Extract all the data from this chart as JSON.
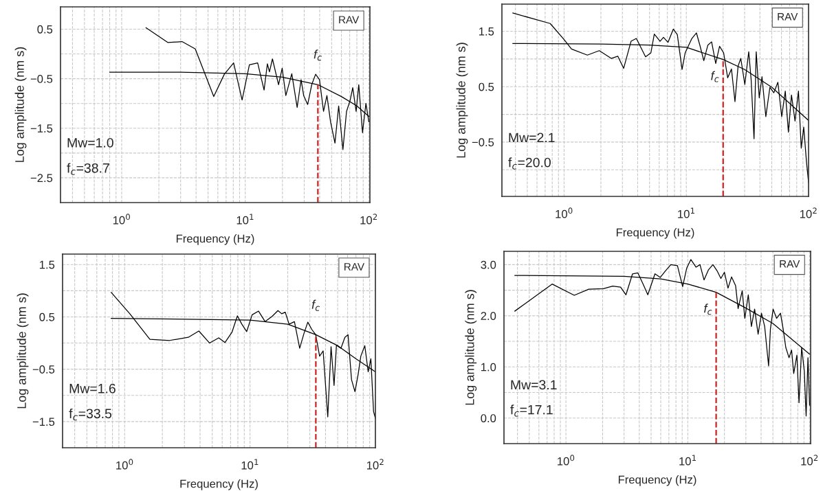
{
  "chart_data": [
    {
      "type": "line",
      "xlabel": "Frequency (Hz)",
      "ylabel": "Log amplitude (nm s)",
      "log": "x",
      "grid": true,
      "xlim": [
        0.32,
        102
      ],
      "xticks": [
        {
          "value": 1,
          "label": "10$^{0}$"
        },
        {
          "value": 10,
          "label": "10$^{1}$"
        },
        {
          "value": 100,
          "label": "10$^{2}$"
        }
      ],
      "ylim": [
        -3.0,
        0.95
      ],
      "yticks": [
        {
          "value": 0.5,
          "label": "0.5"
        },
        {
          "value": 0,
          "label": null
        },
        {
          "value": -0.5,
          "label": "−0.5"
        },
        {
          "value": -1,
          "label": null
        },
        {
          "value": -1.5,
          "label": "−1.5"
        },
        {
          "value": -2,
          "label": null
        },
        {
          "value": -2.5,
          "label": "−2.5"
        }
      ],
      "series": [
        {
          "color": "#000000",
          "x": [
            1.57,
            2.37,
            3.08,
            3.94,
            5.56,
            6.77,
            8.05,
            9.43,
            10.8,
            12.6,
            14.2,
            15.1,
            15.7,
            16.6,
            18.6,
            19.9,
            21.3,
            23.8,
            26.3,
            28.3,
            29.7,
            32.0,
            34.5,
            37.1,
            39.9,
            43.0,
            45.8,
            49.0,
            53.2,
            57.0,
            61.7,
            66.0,
            70.5,
            74.1,
            78.9,
            82.9,
            88.9,
            94.7,
            100
          ],
          "values": [
            0.53,
            0.23,
            0.25,
            0.1,
            -0.86,
            -0.41,
            -0.18,
            -0.93,
            -0.22,
            -0.18,
            -0.73,
            -0.2,
            -0.36,
            -0.1,
            -0.62,
            -0.29,
            -0.84,
            -0.4,
            -1.08,
            -0.52,
            -0.84,
            -1.02,
            -0.62,
            -0.41,
            -0.52,
            -1.16,
            -0.84,
            -1.37,
            -1.8,
            -1.05,
            -1.93,
            -1.16,
            -0.94,
            -0.68,
            -1.16,
            -0.62,
            -1.59,
            -1.0,
            -1.37
          ]
        },
        {
          "color": "#000000",
          "x": [
            0.8,
            3,
            10,
            20,
            38.7,
            60,
            80,
            100
          ],
          "values": [
            -0.37,
            -0.37,
            -0.4,
            -0.47,
            -0.62,
            -0.86,
            -1.05,
            -1.26
          ]
        }
      ],
      "ref_lines": [
        {
          "axis": "x",
          "value": 38.7,
          "label": "f$_{c}$",
          "color": "#cc2222",
          "line_style": "dashed"
        }
      ],
      "annotations": [
        "RAV",
        "Mw=1.0",
        "f$_{c}$=38.7"
      ]
    },
    {
      "type": "line",
      "xlabel": "Frequency (Hz)",
      "ylabel": "Log amplitude (nm s)",
      "log": "x",
      "grid": true,
      "xlim": [
        0.31,
        100
      ],
      "xticks": [
        {
          "value": 1,
          "label": "10$^{0}$"
        },
        {
          "value": 10,
          "label": "10$^{1}$"
        },
        {
          "value": 100,
          "label": "10$^{2}$"
        }
      ],
      "ylim": [
        -1.48,
        1.99
      ],
      "yticks": [
        {
          "value": 1.5,
          "label": "1.5"
        },
        {
          "value": 1.0,
          "label": null
        },
        {
          "value": 0.5,
          "label": "0.5"
        },
        {
          "value": 0,
          "label": null
        },
        {
          "value": -0.5,
          "label": "−0.5"
        },
        {
          "value": -1,
          "label": null
        }
      ],
      "series": [
        {
          "color": "#000000",
          "x": [
            0.38,
            0.77,
            1.0,
            1.15,
            1.55,
            1.94,
            2.43,
            2.75,
            3.07,
            3.53,
            3.9,
            4.64,
            5.13,
            5.47,
            6.1,
            6.5,
            7.08,
            7.83,
            8.44,
            9.23,
            9.78,
            11.1,
            12.1,
            12.9,
            13.9,
            15.0,
            16.1,
            17.4,
            18.7,
            20.2,
            21.8,
            23.4,
            25.0,
            26.5,
            27.9,
            30.1,
            32.4,
            33.9,
            35.8,
            37.3,
            39.5,
            41.6,
            44.7,
            48.3,
            52.0,
            56.1,
            60.3,
            64.5,
            68.4,
            72.5,
            77.5,
            82.7,
            87.1,
            91.3,
            96.1,
            100
          ],
          "values": [
            1.83,
            1.64,
            1.35,
            1.18,
            1.07,
            1.15,
            1.01,
            1.05,
            0.83,
            1.32,
            1.37,
            1.04,
            1.11,
            1.45,
            1.32,
            1.39,
            1.3,
            1.54,
            1.44,
            0.81,
            1.11,
            1.37,
            1.47,
            1.25,
            0.97,
            1.25,
            1.31,
            0.92,
            1.23,
            1.11,
            0.66,
            0.82,
            0.23,
            0.87,
            1.01,
            0.54,
            1.13,
            0.63,
            -0.44,
            1.13,
            0.3,
            0.68,
            -0.04,
            0.49,
            0.39,
            0.58,
            -0.04,
            0.42,
            -0.32,
            0.35,
            -0.12,
            0.42,
            -0.61,
            -0.23,
            -0.85,
            -1.23
          ]
        },
        {
          "color": "#000000",
          "x": [
            0.38,
            2,
            5,
            10,
            20,
            30,
            50,
            70,
            100
          ],
          "values": [
            1.28,
            1.27,
            1.25,
            1.21,
            0.99,
            0.81,
            0.49,
            0.2,
            -0.11
          ]
        }
      ],
      "ref_lines": [
        {
          "axis": "x",
          "value": 20.0,
          "label": "f$_{c}$",
          "color": "#cc2222",
          "line_style": "dashed"
        }
      ],
      "annotations": [
        "RAV",
        "Mw=2.1",
        "f$_{c}$=20.0"
      ]
    },
    {
      "type": "line",
      "xlabel": "Frequency (Hz)",
      "ylabel": "Log amplitude (nm s)",
      "log": "x",
      "grid": true,
      "xlim": [
        0.32,
        100
      ],
      "xticks": [
        {
          "value": 1,
          "label": "10$^{0}$"
        },
        {
          "value": 10,
          "label": "10$^{1}$"
        },
        {
          "value": 100,
          "label": "10$^{2}$"
        }
      ],
      "ylim": [
        -2.0,
        1.7
      ],
      "yticks": [
        {
          "value": 1.5,
          "label": "1.5"
        },
        {
          "value": 1.0,
          "label": null
        },
        {
          "value": 0.5,
          "label": "0.5"
        },
        {
          "value": 0,
          "label": null
        },
        {
          "value": -0.5,
          "label": "−0.5"
        },
        {
          "value": -1,
          "label": null
        },
        {
          "value": -1.5,
          "label": "−1.5"
        }
      ],
      "series": [
        {
          "color": "#000000",
          "x": [
            0.78,
            1.1,
            1.59,
            2.29,
            3.22,
            3.91,
            4.76,
            5.63,
            6.31,
            7.19,
            7.93,
            8.61,
            9.41,
            10.4,
            11.7,
            13.2,
            15.0,
            16.7,
            17.9,
            19.1,
            20.5,
            22.6,
            24.9,
            26.9,
            28.9,
            31.1,
            33.4,
            35.9,
            38.3,
            41.7,
            44.3,
            46.8,
            48.9,
            53.1,
            57.1,
            60.5,
            64.5,
            68.7,
            72.8,
            76.5,
            82.3,
            87.6,
            92.0,
            96.7,
            100
          ],
          "values": [
            0.97,
            0.56,
            0.07,
            0.05,
            0.11,
            0.23,
            0.0,
            0.1,
            0.01,
            0.21,
            0.52,
            0.36,
            0.22,
            0.54,
            0.61,
            0.41,
            0.51,
            0.62,
            0.56,
            0.59,
            0.36,
            0.41,
            -0.1,
            0.18,
            0.4,
            0.26,
            0.16,
            -0.25,
            -0.15,
            -1.41,
            -0.07,
            -0.81,
            -0.04,
            -0.1,
            0.11,
            0.16,
            -0.7,
            -0.93,
            -0.6,
            -0.25,
            -0.05,
            -0.55,
            -0.3,
            -1.31,
            -1.44
          ]
        },
        {
          "color": "#000000",
          "x": [
            0.78,
            5,
            10,
            20,
            33.5,
            50,
            70,
            100
          ],
          "values": [
            0.47,
            0.45,
            0.44,
            0.36,
            0.16,
            -0.05,
            -0.3,
            -0.55
          ]
        }
      ],
      "ref_lines": [
        {
          "axis": "x",
          "value": 33.5,
          "label": "f$_{c}$",
          "color": "#cc2222",
          "line_style": "dashed"
        }
      ],
      "annotations": [
        "RAV",
        "Mw=1.6",
        "f$_{c}$=33.5"
      ]
    },
    {
      "type": "line",
      "xlabel": "Frequency (Hz)",
      "ylabel": "Log amplitude (nm s)",
      "log": "x",
      "grid": true,
      "xlim": [
        0.31,
        102
      ],
      "xticks": [
        {
          "value": 1,
          "label": "10$^{0}$"
        },
        {
          "value": 10,
          "label": "10$^{1}$"
        },
        {
          "value": 100,
          "label": "10$^{2}$"
        }
      ],
      "ylim": [
        -0.5,
        3.26
      ],
      "yticks": [
        {
          "value": 3,
          "label": "3.0"
        },
        {
          "value": 2.5,
          "label": null
        },
        {
          "value": 2,
          "label": "2.0"
        },
        {
          "value": 1.5,
          "label": null
        },
        {
          "value": 1,
          "label": "1.0"
        },
        {
          "value": 0.5,
          "label": null
        },
        {
          "value": 0,
          "label": "0.0"
        }
      ],
      "series": [
        {
          "color": "#000000",
          "x": [
            0.38,
            0.77,
            1.17,
            1.54,
            2.03,
            2.42,
            2.81,
            3.11,
            3.52,
            3.89,
            4.3,
            4.7,
            5.38,
            5.95,
            6.57,
            7.26,
            8.23,
            9.08,
            9.8,
            10.6,
            11.7,
            12.6,
            13.6,
            14.8,
            16.1,
            17.4,
            18.7,
            20.0,
            21.4,
            22.9,
            24.7,
            25.9,
            28.0,
            29.4,
            31.4,
            33.3,
            35.4,
            37.8,
            40.3,
            42.8,
            46.1,
            47.7,
            50.2,
            53.6,
            57.7,
            60.7,
            63.8,
            67.8,
            71.2,
            74.1,
            78.7,
            81.9,
            86.1,
            90.5,
            93.7,
            97.0,
            100
          ],
          "values": [
            2.09,
            2.62,
            2.4,
            2.52,
            2.53,
            2.58,
            2.56,
            2.41,
            2.82,
            2.84,
            2.62,
            2.41,
            2.82,
            2.75,
            2.88,
            3.0,
            2.98,
            2.57,
            2.93,
            3.1,
            2.95,
            3.0,
            2.7,
            2.9,
            3.0,
            2.88,
            2.73,
            2.85,
            2.54,
            2.76,
            2.59,
            2.14,
            2.49,
            1.95,
            2.41,
            1.79,
            2.13,
            1.64,
            2.05,
            1.79,
            1.02,
            1.74,
            2.13,
            1.95,
            2.05,
            1.74,
            1.38,
            1.18,
            1.33,
            0.87,
            1.23,
            0.3,
            1.38,
            0.92,
            0.04,
            1.18,
            0.25
          ]
        },
        {
          "color": "#000000",
          "x": [
            0.38,
            3,
            6,
            10,
            17.1,
            30,
            50,
            100
          ],
          "values": [
            2.79,
            2.77,
            2.72,
            2.62,
            2.46,
            2.15,
            1.85,
            1.25
          ]
        }
      ],
      "ref_lines": [
        {
          "axis": "x",
          "value": 17.1,
          "label": "f$_{c}$",
          "color": "#cc2222",
          "line_style": "dashed"
        }
      ],
      "annotations": [
        "RAV",
        "Mw=3.1",
        "f$_{c}$=17.1"
      ]
    }
  ]
}
